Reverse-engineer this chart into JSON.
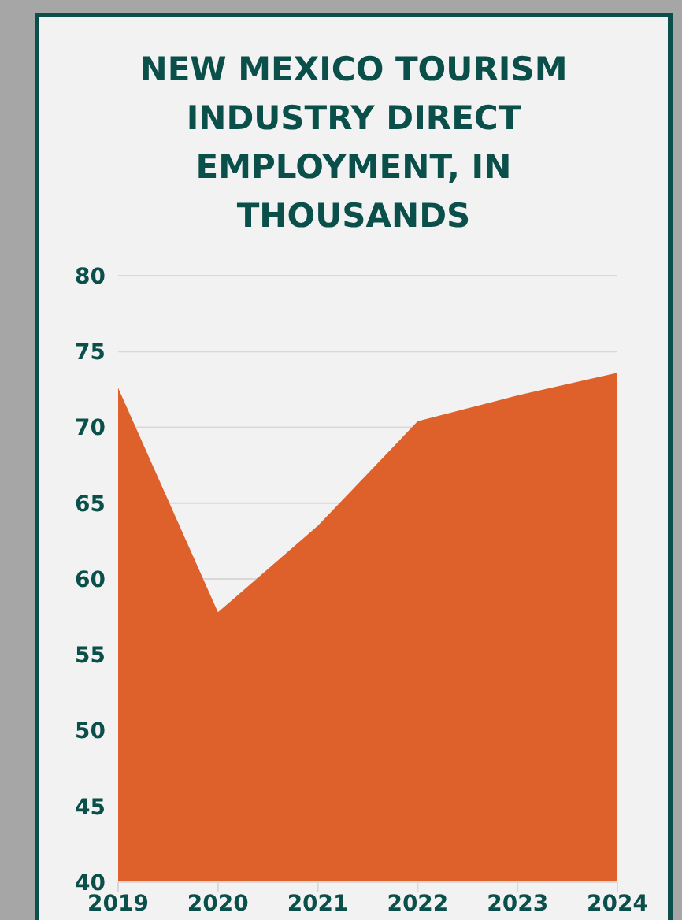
{
  "chart_data": {
    "type": "area",
    "title": "NEW MEXICO TOURISM INDUSTRY DIRECT EMPLOYMENT, IN THOUSANDS",
    "categories": [
      "2019",
      "2020",
      "2021",
      "2022",
      "2023",
      "2024"
    ],
    "values": [
      72.6,
      57.8,
      63.5,
      70.4,
      72.1,
      73.6
    ],
    "color": "#de602a",
    "ylim": [
      40,
      80
    ],
    "yticks": [
      40,
      45,
      50,
      55,
      60,
      65,
      70,
      75,
      80
    ],
    "grid": "y"
  }
}
